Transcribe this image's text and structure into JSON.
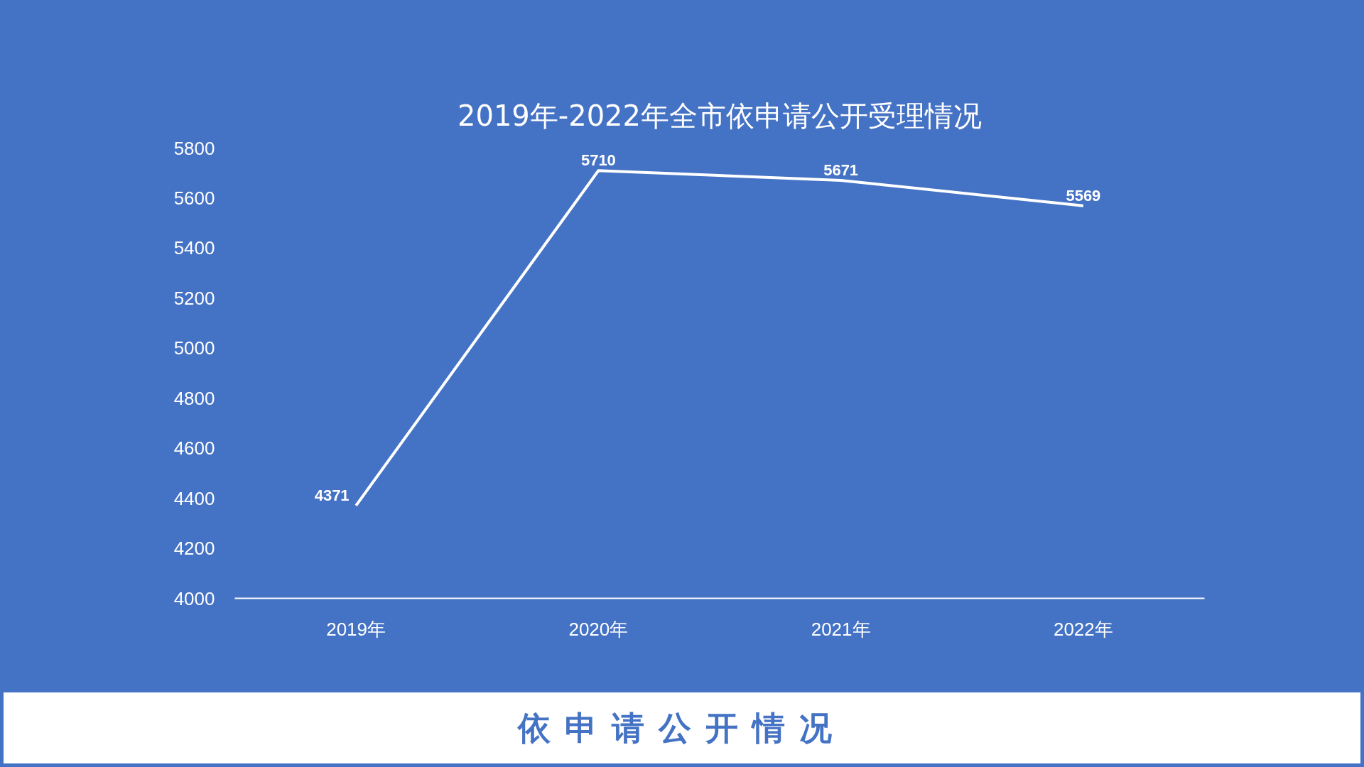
{
  "chart_data": {
    "type": "line",
    "title": "2019年-2022年全市依申请公开受理情况",
    "categories": [
      "2019年",
      "2020年",
      "2021年",
      "2022年"
    ],
    "values": [
      4371,
      5710,
      5671,
      5569
    ],
    "color": "#ffffff",
    "ylim": [
      4000,
      5800
    ],
    "yticks": [
      4000,
      4200,
      4400,
      4600,
      4800,
      5000,
      5200,
      5400,
      5600,
      5800
    ],
    "grid": false,
    "data_labels": true,
    "annotations": [
      "依申请公开情况"
    ]
  }
}
